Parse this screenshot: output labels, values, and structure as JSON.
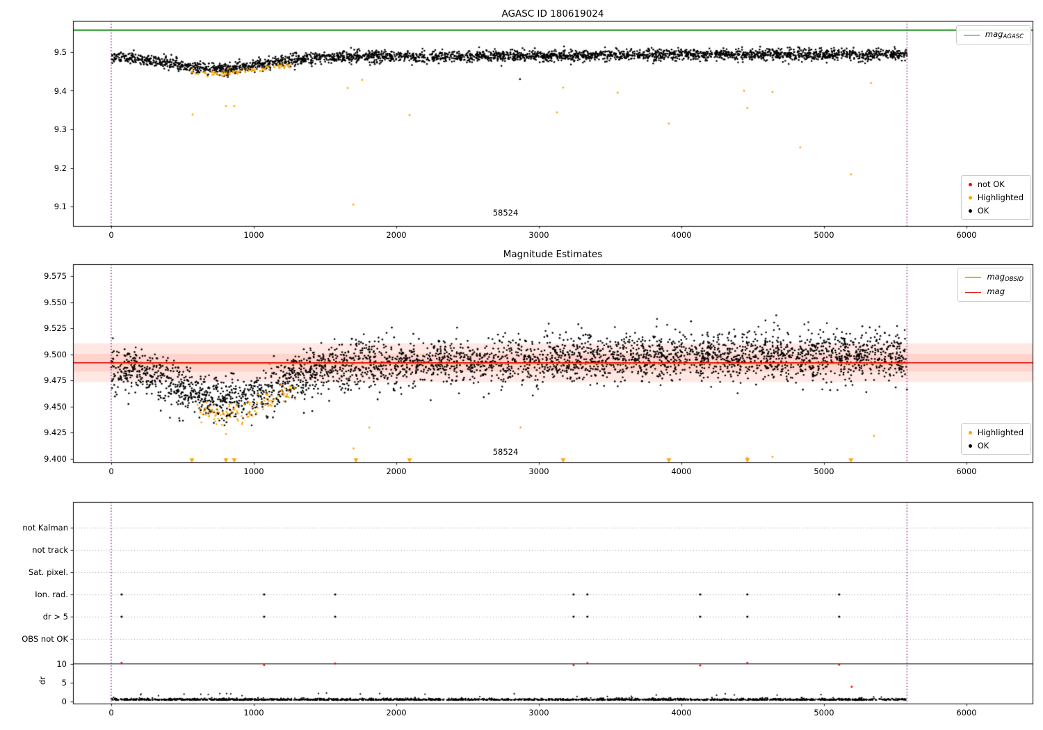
{
  "colors": {
    "background": "#ffffff",
    "ok": "#000000",
    "highlighted": "#ffa500",
    "not_ok": "#ff0000",
    "mag_agasc": "#008000",
    "mag": "#e00000",
    "mag_obsid": "#ffa500",
    "band": "rgba(255,99,71,0.15)",
    "vline": "#800080",
    "grid": "#999999",
    "spine": "#000000"
  },
  "plot1": {
    "title": "AGASC ID 180619024",
    "annotation": "58524",
    "yticks": [
      "9.5",
      "9.4",
      "9.3",
      "9.2",
      "9.1"
    ],
    "xticks": [
      "0",
      "1000",
      "2000",
      "3000",
      "4000",
      "5000",
      "6000"
    ],
    "legend_top": {
      "main": "mag",
      "sub": "AGASC"
    },
    "legend_bottom": [
      {
        "label": "not OK"
      },
      {
        "label": "Highlighted"
      },
      {
        "label": "OK"
      }
    ]
  },
  "plot2": {
    "title": "Magnitude Estimates",
    "annotation": "58524",
    "yticks": [
      "9.575",
      "9.550",
      "9.525",
      "9.500",
      "9.475",
      "9.450",
      "9.425",
      "9.400"
    ],
    "xticks": [
      "0",
      "1000",
      "2000",
      "3000",
      "4000",
      "5000",
      "6000"
    ],
    "legend_top": [
      {
        "main": "mag",
        "sub": "OBSID"
      },
      {
        "main": "mag",
        "sub": ""
      }
    ],
    "legend_bottom": [
      {
        "label": "Highlighted"
      },
      {
        "label": "OK"
      }
    ]
  },
  "plot3": {
    "categories": [
      "not Kalman",
      "not track",
      "Sat. pixel.",
      "Ion. rad.",
      "dr > 5",
      "OBS not OK"
    ],
    "dr_ticks": [
      "10",
      "5",
      "0"
    ],
    "dr_label": "dr",
    "xticks": [
      "0",
      "1000",
      "2000",
      "3000",
      "4000",
      "5000",
      "6000"
    ]
  },
  "chart_data": [
    {
      "type": "scatter",
      "title": "AGASC ID 180619024",
      "xlabel": "",
      "ylabel": "",
      "xlim": [
        -268,
        6464
      ],
      "ylim": [
        9.0497,
        9.581
      ],
      "xticks": [
        0,
        1000,
        2000,
        3000,
        4000,
        5000,
        6000
      ],
      "yticks": [
        9.5,
        9.4,
        9.3,
        9.2,
        9.1
      ],
      "mag_agasc": 9.557,
      "vlines": [
        0,
        5583
      ],
      "annotation": {
        "text": "58524",
        "x": 2770,
        "y": 9.083
      },
      "ok_cloud": {
        "n": 3000,
        "x_range": [
          0,
          5583
        ],
        "base": 9.487,
        "dip_center": 760,
        "dip_sigma": 300,
        "dip_depth": 0.03,
        "rise": 0.007,
        "rise_start": 1500,
        "rise_span": 3000,
        "noise": 0.0075
      },
      "highlighted_cloud": {
        "n": 95,
        "x_range": [
          560,
          1270
        ],
        "offset": -0.012,
        "noise": 0.004
      },
      "highlighted_points": [
        [
          571,
          9.338
        ],
        [
          805,
          9.36
        ],
        [
          863,
          9.36
        ],
        [
          1659,
          9.407
        ],
        [
          1761,
          9.428
        ],
        [
          1698,
          9.105
        ],
        [
          2093,
          9.337
        ],
        [
          3128,
          9.344
        ],
        [
          3171,
          9.408
        ],
        [
          3553,
          9.395
        ],
        [
          3912,
          9.315
        ],
        [
          4440,
          9.4
        ],
        [
          4463,
          9.355
        ],
        [
          4639,
          9.397
        ],
        [
          4834,
          9.253
        ],
        [
          5190,
          9.183
        ],
        [
          5332,
          9.42
        ]
      ],
      "ok_points": [
        [
          2868,
          9.43
        ]
      ],
      "legend_top": [
        "mag_AGASC"
      ],
      "legend_bottom": [
        "not OK",
        "Highlighted",
        "OK"
      ]
    },
    {
      "type": "scatter",
      "title": "Magnitude Estimates",
      "xlabel": "",
      "ylabel": "",
      "xlim": [
        -268,
        6464
      ],
      "ylim": [
        9.3967,
        9.5863
      ],
      "xticks": [
        0,
        1000,
        2000,
        3000,
        4000,
        5000,
        6000
      ],
      "yticks": [
        9.575,
        9.55,
        9.525,
        9.5,
        9.475,
        9.45,
        9.425,
        9.4
      ],
      "mag": 9.492,
      "mag_obsid": 9.4915,
      "mag_obsid_range": [
        0,
        5583
      ],
      "band_outer": [
        9.4735,
        9.5105
      ],
      "band_inner": [
        9.4835,
        9.5005
      ],
      "vlines": [
        0,
        5583
      ],
      "annotation": {
        "text": "58524",
        "x": 2770,
        "y": 9.401
      },
      "ok_cloud": {
        "n": 3600,
        "x_range": [
          0,
          5583
        ],
        "base": 9.4895,
        "dip_center": 800,
        "dip_sigma": 320,
        "dip_depth": 0.034,
        "rise": 0.009,
        "rise_start": 1300,
        "rise_span": 2800,
        "noise": 0.011
      },
      "highlighted_cloud": {
        "n": 110,
        "x_range": [
          600,
          1300
        ],
        "offset": -0.013,
        "noise": 0.005
      },
      "highlighted_points": [
        [
          1700,
          9.41
        ],
        [
          1810,
          9.43
        ],
        [
          2872,
          9.43
        ],
        [
          4463,
          9.401
        ],
        [
          4639,
          9.402
        ],
        [
          5352,
          9.422
        ]
      ],
      "triangle_y": 9.3985,
      "triangles_x": [
        566,
        805,
        863,
        1717,
        2093,
        3171,
        3912,
        4463,
        5190
      ],
      "legend_top": [
        "mag_OBSID",
        "mag"
      ],
      "legend_bottom": [
        "Highlighted",
        "OK"
      ]
    },
    {
      "type": "flags",
      "categories": [
        "not Kalman",
        "not track",
        "Sat. pixel.",
        "Ion. rad.",
        "dr > 5",
        "OBS not OK"
      ],
      "flag_points": {
        "Ion. rad.": [
          73,
          1073,
          1571,
          3244,
          3341,
          4132,
          4463,
          5107
        ],
        "dr > 5": [
          73,
          1073,
          1571,
          3244,
          3341,
          4132,
          4463,
          5107
        ]
      },
      "dr": {
        "label": "dr",
        "ylim": [
          -0.6,
          12.2
        ],
        "ticks": [
          0,
          5,
          10
        ],
        "cap_line": 10,
        "ok_cloud": {
          "n": 2300,
          "x_range": [
            0,
            5583
          ],
          "base": 0.3,
          "noise": 0.22
        },
        "red_points": [
          [
            73,
            10.25
          ],
          [
            1073,
            9.7
          ],
          [
            1571,
            10.1
          ],
          [
            3244,
            9.7
          ],
          [
            3341,
            10.2
          ],
          [
            4132,
            9.6
          ],
          [
            4463,
            10.25
          ],
          [
            5107,
            9.8
          ],
          [
            5195,
            3.9
          ]
        ]
      },
      "xlim": [
        -268,
        6464
      ],
      "xticks": [
        0,
        1000,
        2000,
        3000,
        4000,
        5000,
        6000
      ],
      "vlines": [
        0,
        5583
      ]
    }
  ]
}
